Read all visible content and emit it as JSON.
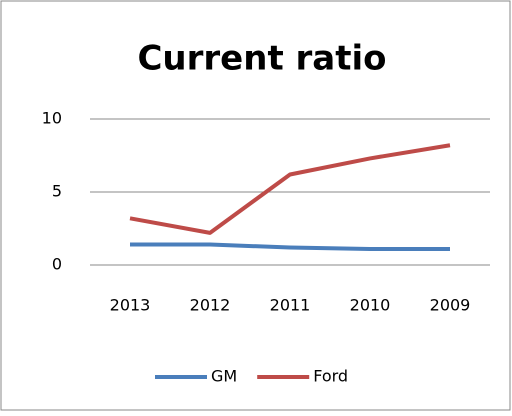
{
  "chart_data": {
    "type": "line",
    "title": "Current ratio",
    "categories": [
      "2013",
      "2012",
      "2011",
      "2010",
      "2009"
    ],
    "series": [
      {
        "name": "GM",
        "color": "#4a7ebb",
        "values": [
          1.4,
          1.4,
          1.2,
          1.1,
          1.1
        ]
      },
      {
        "name": "Ford",
        "color": "#be4b48",
        "values": [
          3.2,
          2.2,
          6.2,
          7.3,
          8.2
        ]
      }
    ],
    "ylim": [
      0,
      10
    ],
    "yticks": [
      0,
      5,
      10
    ],
    "grid": true,
    "legend": "bottom"
  }
}
